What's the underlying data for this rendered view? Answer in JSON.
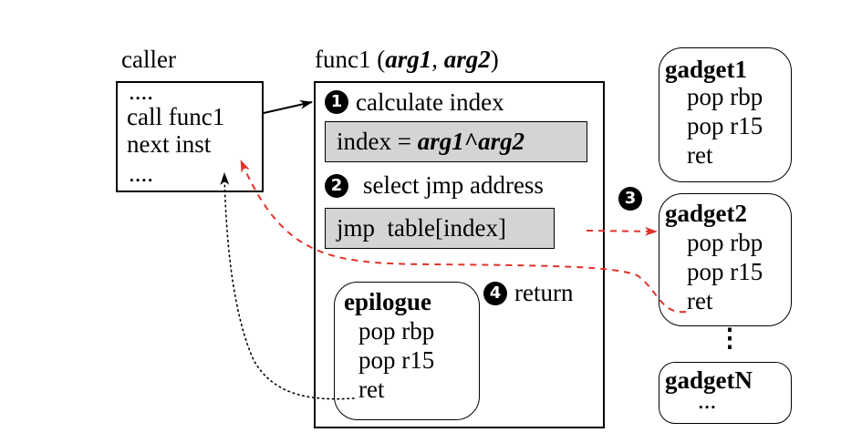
{
  "caller": {
    "title": "caller",
    "lines": [
      "....",
      "call func1",
      "next inst",
      "...."
    ]
  },
  "func1": {
    "title_name": "func1 (",
    "arg1": "arg1",
    "sep": ", ",
    "arg2": "arg2",
    "close": ")",
    "step1": {
      "badge": "1",
      "label": "calculate index"
    },
    "index_box": {
      "prefix": "index = ",
      "expr": "arg1^arg2"
    },
    "step2": {
      "badge": "2",
      "label": "select jmp address"
    },
    "jmp_box": {
      "text": "jmp  table[index]"
    },
    "step4": {
      "badge": "4",
      "label": "return"
    },
    "epilogue": {
      "title": "epilogue",
      "lines": [
        "pop rbp",
        "pop r15",
        "ret"
      ]
    }
  },
  "step3_badge": "3",
  "gadget1": {
    "title": "gadget1",
    "lines": [
      "pop rbp",
      "pop r15",
      "ret"
    ]
  },
  "gadget2": {
    "title": "gadget2",
    "lines": [
      "pop rbp",
      "pop r15",
      "ret"
    ]
  },
  "ellipsis": "⋮",
  "gadgetN": {
    "title": "gadgetN",
    "lines": [
      "..."
    ]
  },
  "colors": {
    "rop_path": "#e0332a",
    "grey_fill": "#d4d4d4"
  }
}
